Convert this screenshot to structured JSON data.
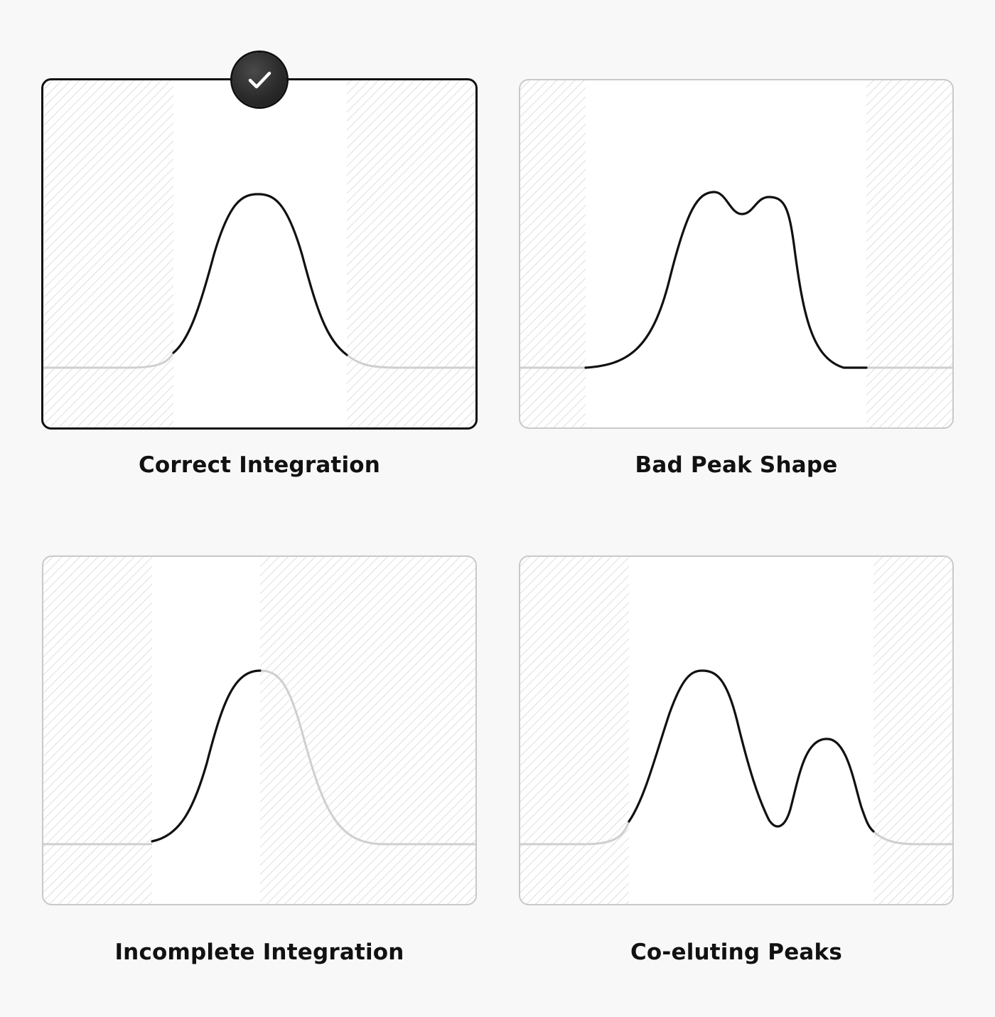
{
  "panels": [
    {
      "id": "correct",
      "caption": "Correct Integration",
      "selected": true,
      "badge_icon": "checkmark-icon"
    },
    {
      "id": "bad-shape",
      "caption": "Bad Peak Shape",
      "selected": false
    },
    {
      "id": "incomplete",
      "caption": "Incomplete Integration",
      "selected": false
    },
    {
      "id": "coeluting",
      "caption": "Co-eluting Peaks",
      "selected": false
    }
  ],
  "colors": {
    "background": "#f8f8f8",
    "card_fill": "#ffffff",
    "hatch": "#d4d4d4",
    "curve": "#111111",
    "faded_curve": "#cfcfcf",
    "selected_border": "#111111",
    "border": "#c9c9c9"
  }
}
